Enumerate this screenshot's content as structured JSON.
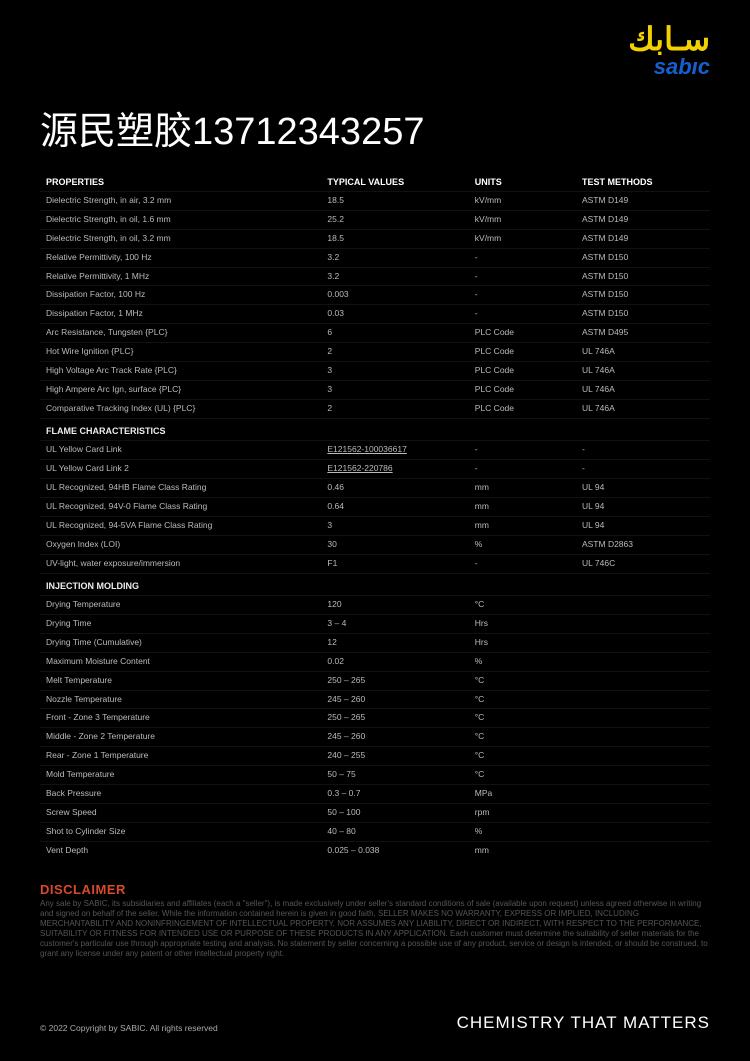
{
  "logo": {
    "arabic": "سـابك",
    "latin": "sabıc"
  },
  "headline": "源民塑胶13712343257",
  "columns": [
    "PROPERTIES",
    "TYPICAL VALUES",
    "UNITS",
    "TEST METHODS"
  ],
  "rows": [
    {
      "p": "Dielectric Strength, in air, 3.2 mm",
      "v": "18.5",
      "u": "kV/mm",
      "m": "ASTM D149"
    },
    {
      "p": "Dielectric Strength, in oil, 1.6 mm",
      "v": "25.2",
      "u": "kV/mm",
      "m": "ASTM D149"
    },
    {
      "p": "Dielectric Strength, in oil, 3.2 mm",
      "v": "18.5",
      "u": "kV/mm",
      "m": "ASTM D149"
    },
    {
      "p": "Relative Permittivity, 100 Hz",
      "v": "3.2",
      "u": "-",
      "m": "ASTM D150"
    },
    {
      "p": "Relative Permittivity, 1 MHz",
      "v": "3.2",
      "u": "-",
      "m": "ASTM D150"
    },
    {
      "p": "Dissipation Factor, 100 Hz",
      "v": "0.003",
      "u": "-",
      "m": "ASTM D150"
    },
    {
      "p": "Dissipation Factor, 1 MHz",
      "v": "0.03",
      "u": "-",
      "m": "ASTM D150"
    },
    {
      "p": "Arc Resistance, Tungsten {PLC}",
      "v": "6",
      "u": "PLC Code",
      "m": "ASTM D495"
    },
    {
      "p": "Hot Wire Ignition {PLC}",
      "v": "2",
      "u": "PLC Code",
      "m": "UL 746A"
    },
    {
      "p": "High Voltage Arc Track Rate {PLC}",
      "v": "3",
      "u": "PLC Code",
      "m": "UL 746A"
    },
    {
      "p": "High Ampere Arc Ign, surface {PLC}",
      "v": "3",
      "u": "PLC Code",
      "m": "UL 746A"
    },
    {
      "p": "Comparative Tracking Index (UL) {PLC}",
      "v": "2",
      "u": "PLC Code",
      "m": "UL 746A"
    },
    {
      "section": "FLAME CHARACTERISTICS"
    },
    {
      "p": "UL Yellow Card Link",
      "v": "E121562-100036617",
      "u": "-",
      "m": "-",
      "link": true
    },
    {
      "p": "UL Yellow Card Link 2",
      "v": "E121562-220786",
      "u": "-",
      "m": "-",
      "link": true
    },
    {
      "p": "UL Recognized, 94HB Flame Class Rating",
      "v": "0.46",
      "u": "mm",
      "m": "UL 94"
    },
    {
      "p": "UL Recognized, 94V-0 Flame Class Rating",
      "v": "0.64",
      "u": "mm",
      "m": "UL 94"
    },
    {
      "p": "UL Recognized, 94-5VA Flame Class Rating",
      "v": "3",
      "u": "mm",
      "m": "UL 94"
    },
    {
      "p": "Oxygen Index (LOI)",
      "v": "30",
      "u": "%",
      "m": "ASTM D2863"
    },
    {
      "p": "UV-light, water exposure/immersion",
      "v": "F1",
      "u": "-",
      "m": "UL 746C"
    },
    {
      "section": "INJECTION MOLDING"
    },
    {
      "p": "Drying Temperature",
      "v": "120",
      "u": "°C",
      "m": ""
    },
    {
      "p": "Drying Time",
      "v": "3 – 4",
      "u": "Hrs",
      "m": ""
    },
    {
      "p": "Drying Time (Cumulative)",
      "v": "12",
      "u": "Hrs",
      "m": ""
    },
    {
      "p": "Maximum Moisture Content",
      "v": "0.02",
      "u": "%",
      "m": ""
    },
    {
      "p": "Melt Temperature",
      "v": "250 – 265",
      "u": "°C",
      "m": ""
    },
    {
      "p": "Nozzle Temperature",
      "v": "245 – 260",
      "u": "°C",
      "m": ""
    },
    {
      "p": "Front - Zone 3 Temperature",
      "v": "250 – 265",
      "u": "°C",
      "m": ""
    },
    {
      "p": "Middle - Zone 2 Temperature",
      "v": "245 – 260",
      "u": "°C",
      "m": ""
    },
    {
      "p": "Rear - Zone 1 Temperature",
      "v": "240 – 255",
      "u": "°C",
      "m": ""
    },
    {
      "p": "Mold Temperature",
      "v": "50 – 75",
      "u": "°C",
      "m": ""
    },
    {
      "p": "Back Pressure",
      "v": "0.3 – 0.7",
      "u": "MPa",
      "m": ""
    },
    {
      "p": "Screw Speed",
      "v": "50 – 100",
      "u": "rpm",
      "m": ""
    },
    {
      "p": "Shot to Cylinder Size",
      "v": "40 – 80",
      "u": "%",
      "m": ""
    },
    {
      "p": "Vent Depth",
      "v": "0.025 – 0.038",
      "u": "mm",
      "m": ""
    }
  ],
  "disclaimer": {
    "title": "DISCLAIMER",
    "body": "Any sale by SABIC, its subsidiaries and affiliates (each a \"seller\"), is made exclusively under seller's standard conditions of sale (available upon request) unless agreed otherwise in writing and signed on behalf of the seller. While the information contained herein is given in good faith, SELLER MAKES NO WARRANTY, EXPRESS OR IMPLIED, INCLUDING MERCHANTABILITY AND NONINFRINGEMENT OF INTELLECTUAL PROPERTY, NOR ASSUMES ANY LIABILITY, DIRECT OR INDIRECT, WITH RESPECT TO THE PERFORMANCE, SUITABILITY OR FITNESS FOR INTENDED USE OR PURPOSE OF THESE PRODUCTS IN ANY APPLICATION. Each customer must determine the suitability of seller materials for the customer's particular use through appropriate testing and analysis. No statement by seller concerning a possible use of any product, service or design is intended, or should be construed, to grant any license under any patent or other intellectual property right."
  },
  "footer": {
    "copyright": "© 2022 Copyright by SABIC. All rights reserved",
    "tagline": "CHEMISTRY THAT MATTERS"
  }
}
